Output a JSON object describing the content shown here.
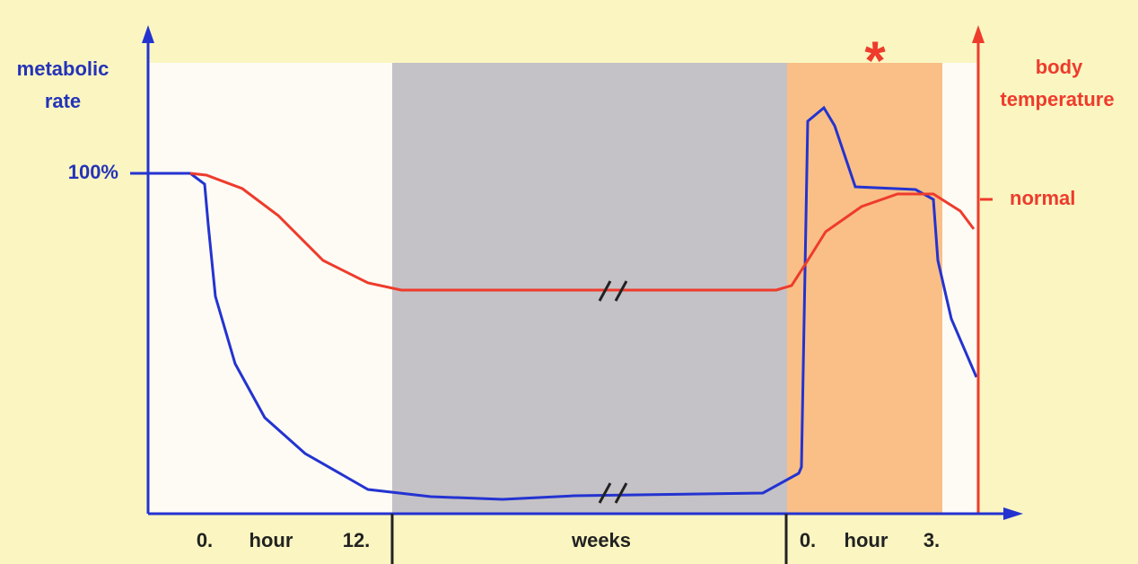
{
  "left_axis": {
    "label": [
      "metabolic",
      "rate"
    ],
    "tick": "100%"
  },
  "right_axis": {
    "label": [
      "body",
      "temperature"
    ],
    "tick": "normal"
  },
  "marker": "*",
  "x_labels": {
    "entry": [
      "0.",
      "hour",
      "12."
    ],
    "hibernation": "weeks",
    "arousal": [
      "0.",
      "hour",
      "3."
    ]
  }
}
